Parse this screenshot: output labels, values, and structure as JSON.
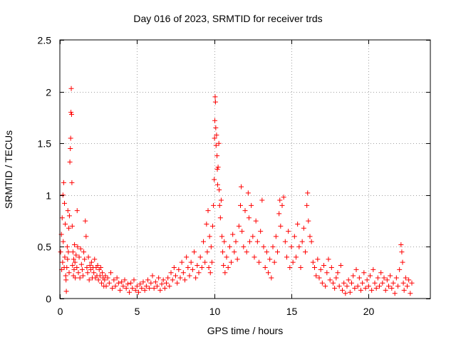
{
  "chart_data": {
    "type": "scatter",
    "title": "Day 016 of 2023, SRMTID for receiver trds",
    "xlabel": "GPS time / hours",
    "ylabel": "SRMTID / TECUs",
    "xlim": [
      0,
      24
    ],
    "ylim": [
      0,
      2.5
    ],
    "x_ticks": [
      0,
      5,
      10,
      15,
      20
    ],
    "x_tick_labels": [
      "0",
      "5",
      "10",
      "15",
      "20"
    ],
    "y_ticks": [
      0,
      0.5,
      1,
      1.5,
      2,
      2.5
    ],
    "y_tick_labels": [
      "0",
      "0.5",
      "1",
      "1.5",
      "2",
      "2.5"
    ],
    "grid": true,
    "marker": "plus",
    "color": "#ff0000",
    "series": [
      {
        "name": "SRMTID",
        "points": [
          [
            0.05,
            0.45
          ],
          [
            0.1,
            0.62
          ],
          [
            0.12,
            0.28
          ],
          [
            0.15,
            0.78
          ],
          [
            0.18,
            0.35
          ],
          [
            0.2,
            1.0
          ],
          [
            0.22,
            0.55
          ],
          [
            0.25,
            1.12
          ],
          [
            0.28,
            0.3
          ],
          [
            0.3,
            0.92
          ],
          [
            0.32,
            0.4
          ],
          [
            0.35,
            0.72
          ],
          [
            0.38,
            0.22
          ],
          [
            0.4,
            0.18
          ],
          [
            0.42,
            0.07
          ],
          [
            0.45,
            0.3
          ],
          [
            0.48,
            0.5
          ],
          [
            0.5,
            0.38
          ],
          [
            0.52,
            0.85
          ],
          [
            0.55,
            0.45
          ],
          [
            0.58,
            0.68
          ],
          [
            0.6,
            0.25
          ],
          [
            0.62,
            0.8
          ],
          [
            0.65,
            1.32
          ],
          [
            0.68,
            1.45
          ],
          [
            0.7,
            1.55
          ],
          [
            0.72,
            1.8
          ],
          [
            0.74,
            2.03
          ],
          [
            0.76,
            1.78
          ],
          [
            0.78,
            1.12
          ],
          [
            0.8,
            0.7
          ],
          [
            0.82,
            0.32
          ],
          [
            0.85,
            0.45
          ],
          [
            0.88,
            0.22
          ],
          [
            0.9,
            0.38
          ],
          [
            0.92,
            0.28
          ],
          [
            0.95,
            0.52
          ],
          [
            0.98,
            0.35
          ],
          [
            1.0,
            0.2
          ],
          [
            1.05,
            0.42
          ],
          [
            1.1,
            0.3
          ],
          [
            1.12,
            0.85
          ],
          [
            1.15,
            0.5
          ],
          [
            1.2,
            0.25
          ],
          [
            1.25,
            0.4
          ],
          [
            1.3,
            0.2
          ],
          [
            1.35,
            0.48
          ],
          [
            1.4,
            0.33
          ],
          [
            1.45,
            0.28
          ],
          [
            1.5,
            0.22
          ],
          [
            1.55,
            0.45
          ],
          [
            1.6,
            0.38
          ],
          [
            1.65,
            0.75
          ],
          [
            1.7,
            0.6
          ],
          [
            1.75,
            0.3
          ],
          [
            1.8,
            0.25
          ],
          [
            1.85,
            0.4
          ],
          [
            1.9,
            0.18
          ],
          [
            1.95,
            0.32
          ],
          [
            2.0,
            0.28
          ],
          [
            2.05,
            0.35
          ],
          [
            2.1,
            0.2
          ],
          [
            2.15,
            0.3
          ],
          [
            2.2,
            0.25
          ],
          [
            2.25,
            0.38
          ],
          [
            2.3,
            0.2
          ],
          [
            2.35,
            0.3
          ],
          [
            2.4,
            0.22
          ],
          [
            2.45,
            0.32
          ],
          [
            2.5,
            0.18
          ],
          [
            2.55,
            0.28
          ],
          [
            2.6,
            0.22
          ],
          [
            2.65,
            0.3
          ],
          [
            2.7,
            0.15
          ],
          [
            2.75,
            0.25
          ],
          [
            2.8,
            0.2
          ],
          [
            2.85,
            0.12
          ],
          [
            2.9,
            0.18
          ],
          [
            2.95,
            0.22
          ],
          [
            3.0,
            0.12
          ],
          [
            3.1,
            0.2
          ],
          [
            3.2,
            0.15
          ],
          [
            3.3,
            0.25
          ],
          [
            3.4,
            0.1
          ],
          [
            3.5,
            0.18
          ],
          [
            3.6,
            0.12
          ],
          [
            3.7,
            0.2
          ],
          [
            3.8,
            0.15
          ],
          [
            3.9,
            0.08
          ],
          [
            4.0,
            0.16
          ],
          [
            4.1,
            0.12
          ],
          [
            4.2,
            0.18
          ],
          [
            4.3,
            0.1
          ],
          [
            4.4,
            0.14
          ],
          [
            4.5,
            0.06
          ],
          [
            4.6,
            0.15
          ],
          [
            4.7,
            0.1
          ],
          [
            4.8,
            0.18
          ],
          [
            4.9,
            0.08
          ],
          [
            5.0,
            0.12
          ],
          [
            5.1,
            0.06
          ],
          [
            5.2,
            0.14
          ],
          [
            5.3,
            0.1
          ],
          [
            5.4,
            0.16
          ],
          [
            5.5,
            0.08
          ],
          [
            5.6,
            0.12
          ],
          [
            5.7,
            0.18
          ],
          [
            5.8,
            0.1
          ],
          [
            5.9,
            0.15
          ],
          [
            6.0,
            0.22
          ],
          [
            6.1,
            0.1
          ],
          [
            6.2,
            0.16
          ],
          [
            6.3,
            0.12
          ],
          [
            6.4,
            0.2
          ],
          [
            6.5,
            0.08
          ],
          [
            6.6,
            0.14
          ],
          [
            6.7,
            0.18
          ],
          [
            6.8,
            0.1
          ],
          [
            6.9,
            0.15
          ],
          [
            7.0,
            0.2
          ],
          [
            7.1,
            0.12
          ],
          [
            7.2,
            0.25
          ],
          [
            7.3,
            0.18
          ],
          [
            7.4,
            0.3
          ],
          [
            7.5,
            0.22
          ],
          [
            7.6,
            0.15
          ],
          [
            7.7,
            0.28
          ],
          [
            7.8,
            0.2
          ],
          [
            7.9,
            0.35
          ],
          [
            8.0,
            0.25
          ],
          [
            8.1,
            0.18
          ],
          [
            8.2,
            0.4
          ],
          [
            8.3,
            0.3
          ],
          [
            8.4,
            0.22
          ],
          [
            8.5,
            0.35
          ],
          [
            8.6,
            0.28
          ],
          [
            8.7,
            0.45
          ],
          [
            8.8,
            0.2
          ],
          [
            8.9,
            0.32
          ],
          [
            9.0,
            0.25
          ],
          [
            9.1,
            0.4
          ],
          [
            9.2,
            0.3
          ],
          [
            9.3,
            0.55
          ],
          [
            9.4,
            0.35
          ],
          [
            9.5,
            0.72
          ],
          [
            9.55,
            0.45
          ],
          [
            9.6,
            0.85
          ],
          [
            9.65,
            0.3
          ],
          [
            9.7,
            0.6
          ],
          [
            9.75,
            0.25
          ],
          [
            9.8,
            0.5
          ],
          [
            9.85,
            0.35
          ],
          [
            9.9,
            0.7
          ],
          [
            9.95,
            0.9
          ],
          [
            10.0,
            1.15
          ],
          [
            10.02,
            1.55
          ],
          [
            10.04,
            1.72
          ],
          [
            10.06,
            1.95
          ],
          [
            10.08,
            1.9
          ],
          [
            10.1,
            1.65
          ],
          [
            10.12,
            1.48
          ],
          [
            10.15,
            1.58
          ],
          [
            10.18,
            1.38
          ],
          [
            10.2,
            1.25
          ],
          [
            10.22,
            1.1
          ],
          [
            10.25,
            1.27
          ],
          [
            10.3,
            1.5
          ],
          [
            10.32,
            1.05
          ],
          [
            10.35,
            0.9
          ],
          [
            10.4,
            0.78
          ],
          [
            10.45,
            0.95
          ],
          [
            10.5,
            0.6
          ],
          [
            10.55,
            0.45
          ],
          [
            10.6,
            0.32
          ],
          [
            10.65,
            0.55
          ],
          [
            10.7,
            0.25
          ],
          [
            10.8,
            0.4
          ],
          [
            10.9,
            0.3
          ],
          [
            11.0,
            0.5
          ],
          [
            11.1,
            0.35
          ],
          [
            11.2,
            0.62
          ],
          [
            11.3,
            0.45
          ],
          [
            11.4,
            0.55
          ],
          [
            11.5,
            0.38
          ],
          [
            11.6,
            0.7
          ],
          [
            11.7,
            0.9
          ],
          [
            11.75,
            1.08
          ],
          [
            11.8,
            0.65
          ],
          [
            11.9,
            0.5
          ],
          [
            12.0,
            0.85
          ],
          [
            12.1,
            0.45
          ],
          [
            12.2,
            1.02
          ],
          [
            12.25,
            0.78
          ],
          [
            12.3,
            0.55
          ],
          [
            12.4,
            0.9
          ],
          [
            12.5,
            0.6
          ],
          [
            12.6,
            0.4
          ],
          [
            12.7,
            0.75
          ],
          [
            12.8,
            0.55
          ],
          [
            12.9,
            0.35
          ],
          [
            13.0,
            0.65
          ],
          [
            13.1,
            0.95
          ],
          [
            13.2,
            0.5
          ],
          [
            13.3,
            0.3
          ],
          [
            13.4,
            0.45
          ],
          [
            13.5,
            0.25
          ],
          [
            13.6,
            0.38
          ],
          [
            13.7,
            0.2
          ],
          [
            13.8,
            0.5
          ],
          [
            13.9,
            0.35
          ],
          [
            14.0,
            0.6
          ],
          [
            14.1,
            0.45
          ],
          [
            14.2,
            0.82
          ],
          [
            14.25,
            0.95
          ],
          [
            14.3,
            0.7
          ],
          [
            14.4,
            0.9
          ],
          [
            14.5,
            0.98
          ],
          [
            14.6,
            0.55
          ],
          [
            14.7,
            0.4
          ],
          [
            14.8,
            0.65
          ],
          [
            14.9,
            0.3
          ],
          [
            15.0,
            0.5
          ],
          [
            15.1,
            0.35
          ],
          [
            15.2,
            0.6
          ],
          [
            15.3,
            0.4
          ],
          [
            15.4,
            0.72
          ],
          [
            15.5,
            0.5
          ],
          [
            15.6,
            0.3
          ],
          [
            15.7,
            0.55
          ],
          [
            15.8,
            0.68
          ],
          [
            15.9,
            0.45
          ],
          [
            16.0,
            0.9
          ],
          [
            16.05,
            1.02
          ],
          [
            16.1,
            0.75
          ],
          [
            16.2,
            0.6
          ],
          [
            16.3,
            0.55
          ],
          [
            16.4,
            0.35
          ],
          [
            16.5,
            0.3
          ],
          [
            16.6,
            0.22
          ],
          [
            16.7,
            0.38
          ],
          [
            16.8,
            0.2
          ],
          [
            16.9,
            0.28
          ],
          [
            17.0,
            0.15
          ],
          [
            17.1,
            0.32
          ],
          [
            17.2,
            0.12
          ],
          [
            17.3,
            0.25
          ],
          [
            17.4,
            0.38
          ],
          [
            17.5,
            0.18
          ],
          [
            17.6,
            0.3
          ],
          [
            17.7,
            0.15
          ],
          [
            17.8,
            0.1
          ],
          [
            17.9,
            0.2
          ],
          [
            18.0,
            0.25
          ],
          [
            18.1,
            0.12
          ],
          [
            18.2,
            0.32
          ],
          [
            18.3,
            0.08
          ],
          [
            18.4,
            0.15
          ],
          [
            18.5,
            0.05
          ],
          [
            18.6,
            0.12
          ],
          [
            18.7,
            0.18
          ],
          [
            18.8,
            0.06
          ],
          [
            18.9,
            0.15
          ],
          [
            19.0,
            0.22
          ],
          [
            19.1,
            0.1
          ],
          [
            19.2,
            0.28
          ],
          [
            19.3,
            0.12
          ],
          [
            19.4,
            0.2
          ],
          [
            19.5,
            0.08
          ],
          [
            19.6,
            0.15
          ],
          [
            19.7,
            0.25
          ],
          [
            19.8,
            0.1
          ],
          [
            19.9,
            0.18
          ],
          [
            20.0,
            0.12
          ],
          [
            20.1,
            0.22
          ],
          [
            20.2,
            0.08
          ],
          [
            20.3,
            0.28
          ],
          [
            20.4,
            0.15
          ],
          [
            20.5,
            0.1
          ],
          [
            20.6,
            0.2
          ],
          [
            20.7,
            0.12
          ],
          [
            20.8,
            0.25
          ],
          [
            20.9,
            0.15
          ],
          [
            21.0,
            0.2
          ],
          [
            21.1,
            0.08
          ],
          [
            21.2,
            0.18
          ],
          [
            21.3,
            0.12
          ],
          [
            21.4,
            0.22
          ],
          [
            21.5,
            0.1
          ],
          [
            21.6,
            0.15
          ],
          [
            21.7,
            0.05
          ],
          [
            21.8,
            0.2
          ],
          [
            21.9,
            0.12
          ],
          [
            22.0,
            0.28
          ],
          [
            22.1,
            0.52
          ],
          [
            22.15,
            0.45
          ],
          [
            22.2,
            0.35
          ],
          [
            22.25,
            0.15
          ],
          [
            22.3,
            0.08
          ],
          [
            22.4,
            0.2
          ],
          [
            22.5,
            0.12
          ],
          [
            22.6,
            0.18
          ],
          [
            22.7,
            0.05
          ],
          [
            22.8,
            0.15
          ]
        ]
      }
    ]
  }
}
